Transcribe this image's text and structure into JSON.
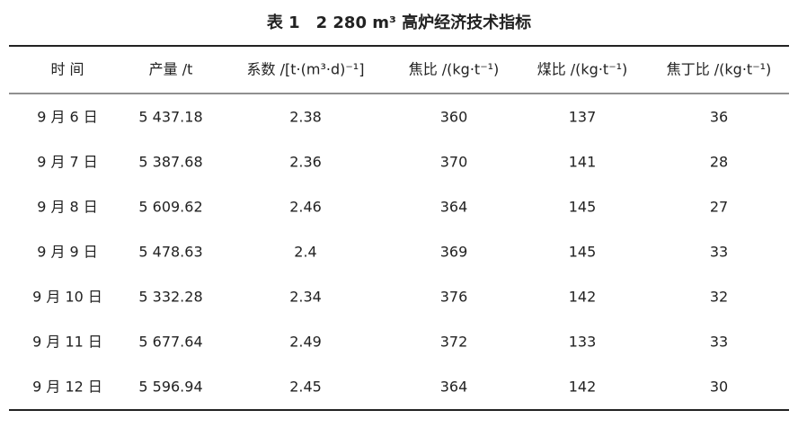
{
  "title": "表 1　2 280 m³ 高炉经济技术指标",
  "table": {
    "headers": [
      "时 间",
      "产量 /t",
      "系数 /[t·(m³·d)⁻¹]",
      "焦比 /(kg·t⁻¹)",
      "煤比 /(kg·t⁻¹)",
      "焦丁比 /(kg·t⁻¹)"
    ],
    "rows": [
      [
        "9 月 6 日",
        "5 437.18",
        "2.38",
        "360",
        "137",
        "36"
      ],
      [
        "9 月 7 日",
        "5 387.68",
        "2.36",
        "370",
        "141",
        "28"
      ],
      [
        "9 月 8 日",
        "5 609.62",
        "2.46",
        "364",
        "145",
        "27"
      ],
      [
        "9 月 9 日",
        "5 478.63",
        "2.4",
        "369",
        "145",
        "33"
      ],
      [
        "9 月 10 日",
        "5 332.28",
        "2.34",
        "376",
        "142",
        "32"
      ],
      [
        "9 月 11 日",
        "5 677.64",
        "2.49",
        "372",
        "133",
        "33"
      ],
      [
        "9 月 12 日",
        "5 596.94",
        "2.45",
        "364",
        "142",
        "30"
      ]
    ]
  }
}
